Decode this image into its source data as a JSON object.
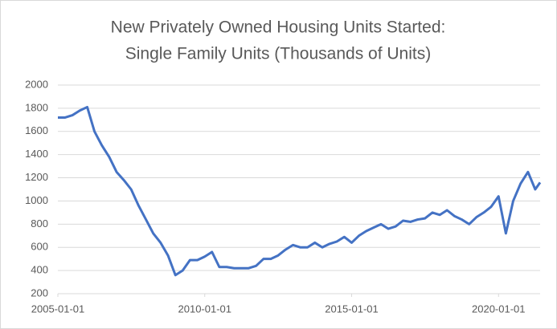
{
  "chart_data": {
    "type": "line",
    "title": [
      "New Privately Owned Housing Units Started:",
      "Single Family Units (Thousands of Units)"
    ],
    "color": "#4472c4",
    "x": [
      "2005-01-01",
      "2005-04-01",
      "2005-07-01",
      "2005-10-01",
      "2006-01-01",
      "2006-04-01",
      "2006-07-01",
      "2006-10-01",
      "2007-01-01",
      "2007-04-01",
      "2007-07-01",
      "2007-10-01",
      "2008-01-01",
      "2008-04-01",
      "2008-07-01",
      "2008-10-01",
      "2009-01-01",
      "2009-04-01",
      "2009-07-01",
      "2009-10-01",
      "2010-01-01",
      "2010-04-01",
      "2010-07-01",
      "2010-10-01",
      "2011-01-01",
      "2011-04-01",
      "2011-07-01",
      "2011-10-01",
      "2012-01-01",
      "2012-04-01",
      "2012-07-01",
      "2012-10-01",
      "2013-01-01",
      "2013-04-01",
      "2013-07-01",
      "2013-10-01",
      "2014-01-01",
      "2014-04-01",
      "2014-07-01",
      "2014-10-01",
      "2015-01-01",
      "2015-04-01",
      "2015-07-01",
      "2015-10-01",
      "2016-01-01",
      "2016-04-01",
      "2016-07-01",
      "2016-10-01",
      "2017-01-01",
      "2017-04-01",
      "2017-07-01",
      "2017-10-01",
      "2018-01-01",
      "2018-04-01",
      "2018-07-01",
      "2018-10-01",
      "2019-01-01",
      "2019-04-01",
      "2019-07-01",
      "2019-10-01",
      "2020-01-01",
      "2020-04-01",
      "2020-07-01",
      "2020-10-01",
      "2021-01-01",
      "2021-04-01",
      "2021-06-01"
    ],
    "values": [
      1720,
      1720,
      1740,
      1780,
      1810,
      1600,
      1480,
      1380,
      1250,
      1180,
      1100,
      960,
      840,
      720,
      640,
      530,
      360,
      400,
      490,
      490,
      520,
      560,
      430,
      430,
      420,
      420,
      420,
      440,
      500,
      500,
      530,
      580,
      620,
      600,
      600,
      640,
      600,
      630,
      650,
      690,
      640,
      700,
      740,
      770,
      800,
      760,
      780,
      830,
      820,
      840,
      850,
      900,
      880,
      920,
      870,
      840,
      800,
      860,
      900,
      950,
      1040,
      720,
      1000,
      1150,
      1250,
      1100,
      1160
    ],
    "xlim": [
      "2005-01-01",
      "2021-06-01"
    ],
    "xticks": [
      "2005-01-01",
      "2010-01-01",
      "2015-01-01",
      "2020-01-01"
    ],
    "ylim": [
      200,
      2000
    ],
    "yticks": [
      200,
      400,
      600,
      800,
      1000,
      1200,
      1400,
      1600,
      1800,
      2000
    ],
    "grid": true
  }
}
